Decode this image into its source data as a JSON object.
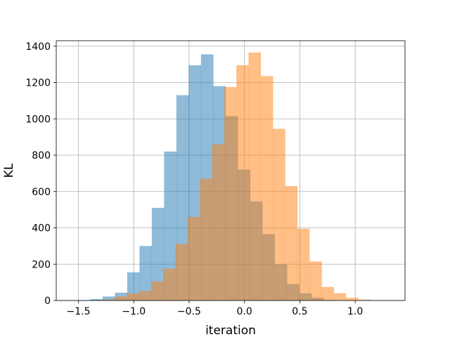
{
  "chart_data": {
    "type": "bar",
    "subtype": "overlapping-histogram",
    "title": "",
    "xlabel": "iteration",
    "ylabel": "KL",
    "xlim": [
      -1.7,
      1.45
    ],
    "ylim": [
      0,
      1430
    ],
    "grid": true,
    "legend": "none",
    "xticks": [
      -1.5,
      -1.0,
      -0.5,
      0.0,
      0.5,
      1.0
    ],
    "xtick_labels": [
      "−1.5",
      "−1.0",
      "−0.5",
      "0.0",
      "0.5",
      "1.0"
    ],
    "yticks": [
      0,
      200,
      400,
      600,
      800,
      1000,
      1200,
      1400
    ],
    "ytick_labels": [
      "0",
      "200",
      "400",
      "600",
      "800",
      "1000",
      "1200",
      "1400"
    ],
    "series": [
      {
        "color": "#1f77b4",
        "opacity": 0.5,
        "bin_edges": [
          -1.503,
          -1.392,
          -1.281,
          -1.17,
          -1.059,
          -0.948,
          -0.837,
          -0.726,
          -0.615,
          -0.504,
          -0.393,
          -0.282,
          -0.171,
          -0.06,
          0.051,
          0.162,
          0.273,
          0.384,
          0.495,
          0.606,
          0.717,
          0.828
        ],
        "counts": [
          2,
          8,
          22,
          43,
          155,
          300,
          510,
          820,
          1130,
          1295,
          1355,
          1180,
          1015,
          720,
          545,
          365,
          200,
          90,
          40,
          15,
          3
        ]
      },
      {
        "color": "#ff7f0e",
        "opacity": 0.5,
        "bin_edges": [
          -1.283,
          -1.173,
          -1.063,
          -0.953,
          -0.843,
          -0.733,
          -0.623,
          -0.513,
          -0.403,
          -0.293,
          -0.183,
          -0.073,
          0.037,
          0.147,
          0.257,
          0.367,
          0.477,
          0.587,
          0.697,
          0.807,
          0.917,
          1.027,
          1.137,
          1.247
        ],
        "counts": [
          5,
          22,
          38,
          52,
          105,
          175,
          312,
          460,
          670,
          860,
          1175,
          1295,
          1365,
          1235,
          945,
          630,
          395,
          215,
          75,
          40,
          15,
          5,
          1
        ]
      }
    ]
  }
}
